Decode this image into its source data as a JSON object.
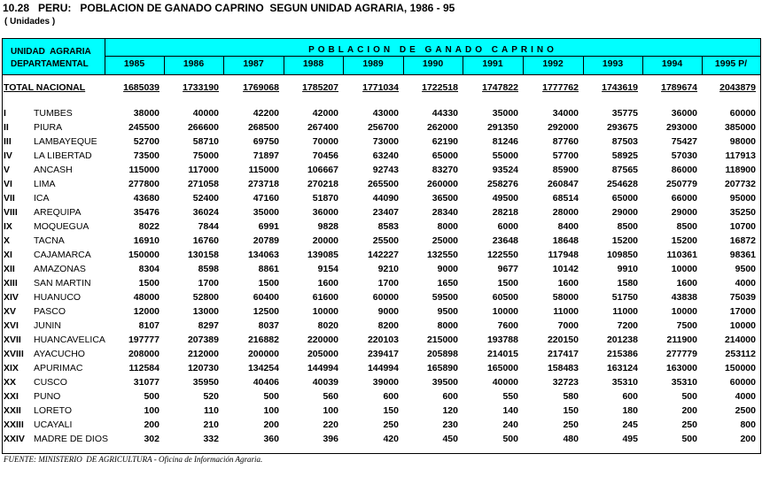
{
  "header": {
    "title": "10.28   PERU:   POBLACION DE GANADO CAPRINO  SEGUN UNIDAD AGRARIA, 1986 - 95",
    "subtitle": "( Unidades )"
  },
  "table": {
    "corner": [
      "UNIDAD  AGRARIA",
      "DEPARTAMENTAL"
    ],
    "group_header": "POBLACION DE GANADO CAPRINO",
    "columns": [
      "1985",
      "1986",
      "1987",
      "1988",
      "1989",
      "1990",
      "1991",
      "1992",
      "1993",
      "1994",
      "1995 P/"
    ],
    "total": {
      "label": "TOTAL NACIONAL",
      "values": [
        1685039,
        1733190,
        1769068,
        1785207,
        1771034,
        1722518,
        1747822,
        1777762,
        1743619,
        1789674,
        2043879
      ]
    },
    "rows": [
      {
        "code": "I",
        "name": "TUMBES",
        "values": [
          38000,
          40000,
          42200,
          42000,
          43000,
          44330,
          35000,
          34000,
          35775,
          36000,
          60000
        ]
      },
      {
        "code": "II",
        "name": "PIURA",
        "values": [
          245500,
          266600,
          268500,
          267400,
          256700,
          262000,
          291350,
          292000,
          293675,
          293000,
          385000
        ]
      },
      {
        "code": "III",
        "name": "LAMBAYEQUE",
        "values": [
          52700,
          58710,
          69750,
          70000,
          73000,
          62190,
          81246,
          87760,
          87503,
          75427,
          98000
        ]
      },
      {
        "code": "IV",
        "name": "LA LIBERTAD",
        "values": [
          73500,
          75000,
          71897,
          70456,
          63240,
          65000,
          55000,
          57700,
          58925,
          57030,
          117913
        ]
      },
      {
        "code": "V",
        "name": "ANCASH",
        "values": [
          115000,
          117000,
          115000,
          106667,
          92743,
          83270,
          93524,
          85900,
          87565,
          86000,
          118900
        ]
      },
      {
        "code": "VI",
        "name": "LIMA",
        "values": [
          277800,
          271058,
          273718,
          270218,
          265500,
          260000,
          258276,
          260847,
          254628,
          250779,
          207732
        ]
      },
      {
        "code": "VII",
        "name": "ICA",
        "values": [
          43680,
          52400,
          47160,
          51870,
          44090,
          36500,
          49500,
          68514,
          65000,
          66000,
          95000
        ]
      },
      {
        "code": "VIII",
        "name": "AREQUIPA",
        "values": [
          35476,
          36024,
          35000,
          36000,
          23407,
          28340,
          28218,
          28000,
          29000,
          29000,
          35250
        ]
      },
      {
        "code": "IX",
        "name": "MOQUEGUA",
        "values": [
          8022,
          7844,
          6991,
          9828,
          8583,
          8000,
          6000,
          8400,
          8500,
          8500,
          10700
        ]
      },
      {
        "code": "X",
        "name": "TACNA",
        "values": [
          16910,
          16760,
          20789,
          20000,
          25500,
          25000,
          23648,
          18648,
          15200,
          15200,
          16872
        ]
      },
      {
        "code": "XI",
        "name": "CAJAMARCA",
        "values": [
          150000,
          130158,
          134063,
          139085,
          142227,
          132550,
          122550,
          117948,
          109850,
          110361,
          98361
        ]
      },
      {
        "code": "XII",
        "name": "AMAZONAS",
        "values": [
          8304,
          8598,
          8861,
          9154,
          9210,
          9000,
          9677,
          10142,
          9910,
          10000,
          9500
        ]
      },
      {
        "code": "XIII",
        "name": "SAN MARTIN",
        "values": [
          1500,
          1700,
          1500,
          1600,
          1700,
          1650,
          1500,
          1600,
          1580,
          1600,
          4000
        ]
      },
      {
        "code": "XIV",
        "name": "HUANUCO",
        "values": [
          48000,
          52800,
          60400,
          61600,
          60000,
          59500,
          60500,
          58000,
          51750,
          43838,
          75039
        ]
      },
      {
        "code": "XV",
        "name": "PASCO",
        "values": [
          12000,
          13000,
          12500,
          10000,
          9000,
          9500,
          10000,
          11000,
          11000,
          10000,
          17000
        ]
      },
      {
        "code": "XVI",
        "name": "JUNIN",
        "values": [
          8107,
          8297,
          8037,
          8020,
          8200,
          8000,
          7600,
          7000,
          7200,
          7500,
          10000
        ]
      },
      {
        "code": "XVII",
        "name": "HUANCAVELICA",
        "values": [
          197777,
          207389,
          216882,
          220000,
          220103,
          215000,
          193788,
          220150,
          201238,
          211900,
          214000
        ]
      },
      {
        "code": "XVIII",
        "name": "AYACUCHO",
        "values": [
          208000,
          212000,
          200000,
          205000,
          239417,
          205898,
          214015,
          217417,
          215386,
          277779,
          253112
        ]
      },
      {
        "code": "XIX",
        "name": "APURIMAC",
        "values": [
          112584,
          120730,
          134254,
          144994,
          144994,
          165890,
          165000,
          158483,
          163124,
          163000,
          150000
        ]
      },
      {
        "code": "XX",
        "name": "CUSCO",
        "values": [
          31077,
          35950,
          40406,
          40039,
          39000,
          39500,
          40000,
          32723,
          35310,
          35310,
          60000
        ]
      },
      {
        "code": "XXI",
        "name": "PUNO",
        "values": [
          500,
          520,
          500,
          560,
          600,
          600,
          550,
          580,
          600,
          500,
          4000
        ]
      },
      {
        "code": "XXII",
        "name": "LORETO",
        "values": [
          100,
          110,
          100,
          100,
          150,
          120,
          140,
          150,
          180,
          200,
          2500
        ]
      },
      {
        "code": "XXIII",
        "name": "UCAYALI",
        "values": [
          200,
          210,
          200,
          220,
          250,
          230,
          240,
          250,
          245,
          250,
          800
        ]
      },
      {
        "code": "XXIV",
        "name": "MADRE DE DIOS",
        "values": [
          302,
          332,
          360,
          396,
          420,
          450,
          500,
          480,
          495,
          500,
          200
        ]
      }
    ]
  },
  "footer": "FUENTE: MINISTERIO  DE AGRICULTURA - Oficina de Información Agraria."
}
